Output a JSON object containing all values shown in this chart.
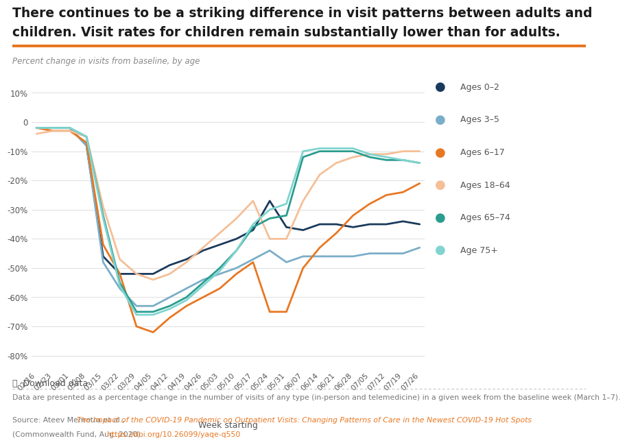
{
  "title": "There continues to be a striking difference in visit patterns between adults and\nchildren. Visit rates for children remain substantially lower than for adults.",
  "subtitle": "Percent change in visits from baseline, by age",
  "xlabel": "Week starting",
  "orange_rule_color": "#E87722",
  "title_color": "#1a1a1a",
  "subtitle_color": "#888888",
  "background_color": "#ffffff",
  "grid_color": "#dddddd",
  "weeks": [
    "02/16",
    "02/23",
    "03/01",
    "03/08",
    "03/15",
    "03/22",
    "03/29",
    "04/05",
    "04/12",
    "04/19",
    "04/26",
    "05/03",
    "05/10",
    "05/17",
    "05/24",
    "05/31",
    "06/07",
    "06/14",
    "06/21",
    "06/28",
    "07/05",
    "07/12",
    "07/19",
    "07/26"
  ],
  "series": {
    "Ages 0–2": {
      "color": "#1a3a5c",
      "data": [
        -2,
        -2,
        -2,
        -8,
        -46,
        -52,
        -52,
        -52,
        -49,
        -47,
        -44,
        -42,
        -40,
        -37,
        -27,
        -36,
        -37,
        -35,
        -35,
        -36,
        -35,
        -35,
        -34,
        -35
      ]
    },
    "Ages 3–5": {
      "color": "#7aaec8",
      "data": [
        -2,
        -2,
        -2,
        -8,
        -48,
        -57,
        -63,
        -63,
        -60,
        -57,
        -54,
        -52,
        -50,
        -47,
        -44,
        -48,
        -46,
        -46,
        -46,
        -46,
        -45,
        -45,
        -45,
        -43
      ]
    },
    "Ages 6–17": {
      "color": "#E87722",
      "data": [
        -2,
        -3,
        -3,
        -7,
        -42,
        -52,
        -70,
        -72,
        -67,
        -63,
        -60,
        -57,
        -52,
        -48,
        -65,
        -65,
        -50,
        -43,
        -38,
        -32,
        -28,
        -25,
        -24,
        -21
      ]
    },
    "Ages 18–64": {
      "color": "#F5BF97",
      "data": [
        -4,
        -3,
        -3,
        -5,
        -29,
        -47,
        -52,
        -54,
        -52,
        -48,
        -43,
        -38,
        -33,
        -27,
        -40,
        -40,
        -27,
        -18,
        -14,
        -12,
        -11,
        -11,
        -10,
        -10
      ]
    },
    "Ages 65–74": {
      "color": "#2a9d8f",
      "data": [
        -2,
        -2,
        -2,
        -5,
        -32,
        -55,
        -65,
        -65,
        -63,
        -60,
        -55,
        -50,
        -44,
        -36,
        -33,
        -32,
        -12,
        -10,
        -10,
        -10,
        -12,
        -13,
        -13,
        -14
      ]
    },
    "Age 75+": {
      "color": "#80d4cf",
      "data": [
        -2,
        -2,
        -2,
        -5,
        -33,
        -56,
        -66,
        -66,
        -64,
        -61,
        -56,
        -51,
        -44,
        -35,
        -30,
        -28,
        -10,
        -9,
        -9,
        -9,
        -11,
        -12,
        -13,
        -14
      ]
    }
  },
  "ylim": [
    -85,
    15
  ],
  "yticks": [
    10,
    0,
    -10,
    -20,
    -30,
    -40,
    -50,
    -60,
    -70,
    -80
  ],
  "footnote1": "Data are presented as a percentage change in the number of visits of any type (in-person and telemedicine) in a given week from the baseline week (March 1–7).",
  "source_normal": "Source: Ateev Mehrotra et al., ",
  "source_italic": "The Impact of the COVID-19 Pandemic on Outpatient Visits: Changing Patterns of Care in the Newest COVID-19 Hot Spots",
  "source_normal2": "\n(Commonwealth Fund, Aug. 2020). ",
  "source_link": "https://doi.org/10.26099/yaqe-q550",
  "download_text": "⤓  Download data",
  "legend_order": [
    "Ages 0–2",
    "Ages 3–5",
    "Ages 6–17",
    "Ages 18–64",
    "Ages 65–74",
    "Age 75+"
  ]
}
